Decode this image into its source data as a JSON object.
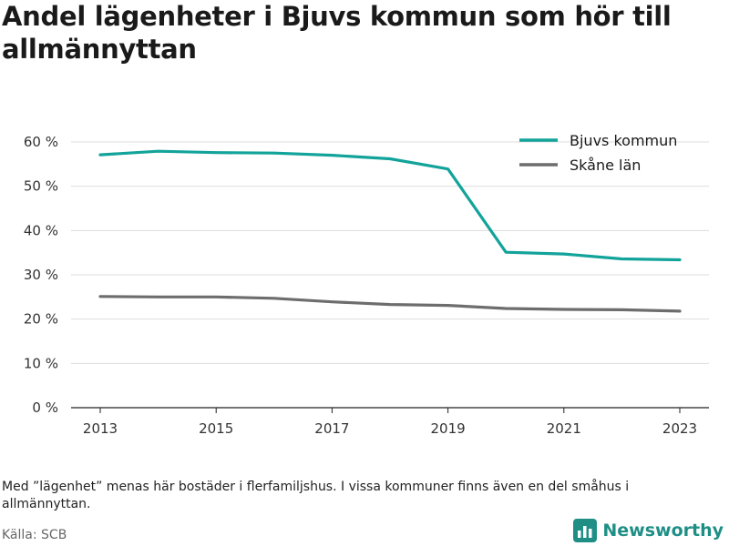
{
  "title": "Andel lägenheter i Bjuvs kommun som hör till allmännyttan",
  "note": "Med ”lägenhet” menas här bostäder i flerfamiljshus. I vissa kommuner finns även en del småhus i allmännyttan.",
  "source": "Källa: SCB",
  "brand": {
    "name": "Newsworthy",
    "icon": "newsworthy-logo-icon",
    "color": "#1f8f86"
  },
  "chart_data": {
    "type": "line",
    "title": "Andel lägenheter i Bjuvs kommun som hör till allmännyttan",
    "x": [
      2013,
      2014,
      2015,
      2016,
      2017,
      2018,
      2019,
      2020,
      2021,
      2022,
      2023
    ],
    "x_ticks": [
      2013,
      2015,
      2017,
      2019,
      2021,
      2023
    ],
    "y_ticks": [
      0,
      10,
      20,
      30,
      40,
      50,
      60
    ],
    "y_tick_suffix": " %",
    "ylim": [
      0,
      60
    ],
    "grid": true,
    "legend_position": "top-right",
    "series": [
      {
        "name": "Bjuvs kommun",
        "color": "#12a39a",
        "values": [
          57.1,
          57.9,
          57.6,
          57.5,
          57.0,
          56.2,
          53.9,
          35.1,
          34.7,
          33.6,
          33.4
        ]
      },
      {
        "name": "Skåne län",
        "color": "#6d6d6d",
        "values": [
          25.1,
          25.0,
          25.0,
          24.7,
          23.9,
          23.3,
          23.1,
          22.4,
          22.2,
          22.1,
          21.8
        ]
      }
    ]
  }
}
